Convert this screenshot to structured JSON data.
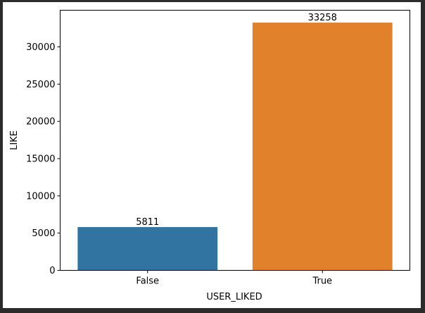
{
  "chart_data": {
    "type": "bar",
    "categories": [
      "False",
      "True"
    ],
    "values": [
      5811,
      33258
    ],
    "data_labels": [
      "5811",
      "33258"
    ],
    "colors": [
      "#3274a1",
      "#e1812c"
    ],
    "title": "",
    "xlabel": "USER_LIKED",
    "ylabel": "LIKE",
    "ylim": [
      0,
      34921
    ],
    "yticks": [
      0,
      5000,
      10000,
      15000,
      20000,
      25000,
      30000
    ],
    "ytick_labels": [
      "0",
      "5000",
      "10000",
      "15000",
      "20000",
      "25000",
      "30000"
    ],
    "grid": false,
    "legend": "none"
  }
}
